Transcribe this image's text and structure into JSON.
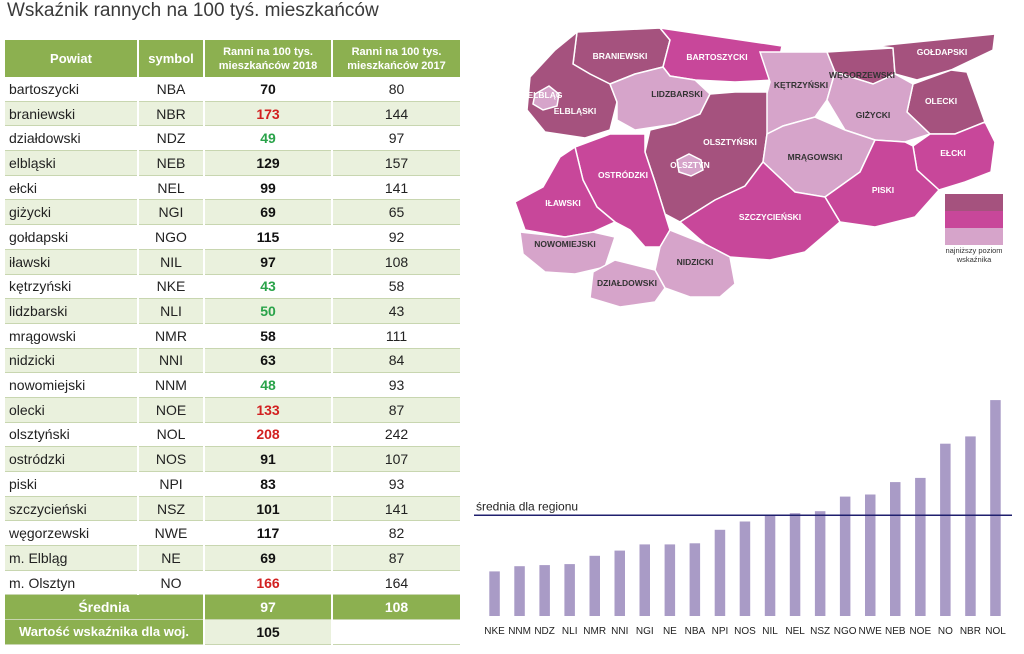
{
  "title": "Wskaźnik rannych na 100 tyś. mieszkańców",
  "table": {
    "headers": [
      "Powiat",
      "symbol",
      "Ranni na 100 tys. mieszkańców 2018",
      "Ranni na 100 tys. mieszkańców 2017"
    ],
    "rows": [
      {
        "powiat": "bartoszycki",
        "symbol": "NBA",
        "v2018": "70",
        "v2017": "80",
        "hl": ""
      },
      {
        "powiat": "braniewski",
        "symbol": "NBR",
        "v2018": "173",
        "v2017": "144",
        "hl": "hi"
      },
      {
        "powiat": "działdowski",
        "symbol": "NDZ",
        "v2018": "49",
        "v2017": "97",
        "hl": "lo"
      },
      {
        "powiat": "elbląski",
        "symbol": "NEB",
        "v2018": "129",
        "v2017": "157",
        "hl": ""
      },
      {
        "powiat": "ełcki",
        "symbol": "NEL",
        "v2018": "99",
        "v2017": "141",
        "hl": ""
      },
      {
        "powiat": "giżycki",
        "symbol": "NGI",
        "v2018": "69",
        "v2017": "65",
        "hl": ""
      },
      {
        "powiat": "gołdapski",
        "symbol": "NGO",
        "v2018": "115",
        "v2017": "92",
        "hl": ""
      },
      {
        "powiat": "iławski",
        "symbol": "NIL",
        "v2018": "97",
        "v2017": "108",
        "hl": ""
      },
      {
        "powiat": "kętrzyński",
        "symbol": "NKE",
        "v2018": "43",
        "v2017": "58",
        "hl": "lo"
      },
      {
        "powiat": "lidzbarski",
        "symbol": "NLI",
        "v2018": "50",
        "v2017": "43",
        "hl": "lo"
      },
      {
        "powiat": "mrągowski",
        "symbol": "NMR",
        "v2018": "58",
        "v2017": "111",
        "hl": ""
      },
      {
        "powiat": "nidzicki",
        "symbol": "NNI",
        "v2018": "63",
        "v2017": "84",
        "hl": ""
      },
      {
        "powiat": "nowomiejski",
        "symbol": "NNM",
        "v2018": "48",
        "v2017": "93",
        "hl": "lo"
      },
      {
        "powiat": "olecki",
        "symbol": "NOE",
        "v2018": "133",
        "v2017": "87",
        "hl": "hi"
      },
      {
        "powiat": "olsztyński",
        "symbol": "NOL",
        "v2018": "208",
        "v2017": "242",
        "hl": "hi"
      },
      {
        "powiat": "ostródzki",
        "symbol": "NOS",
        "v2018": "91",
        "v2017": "107",
        "hl": ""
      },
      {
        "powiat": "piski",
        "symbol": "NPI",
        "v2018": "83",
        "v2017": "93",
        "hl": ""
      },
      {
        "powiat": "szczycieński",
        "symbol": "NSZ",
        "v2018": "101",
        "v2017": "141",
        "hl": ""
      },
      {
        "powiat": "węgorzewski",
        "symbol": "NWE",
        "v2018": "117",
        "v2017": "82",
        "hl": ""
      },
      {
        "powiat": "m. Elbląg",
        "symbol": "NE",
        "v2018": "69",
        "v2017": "87",
        "hl": ""
      },
      {
        "powiat": "m. Olsztyn",
        "symbol": "NO",
        "v2018": "166",
        "v2017": "164",
        "hl": "hi"
      }
    ],
    "mean_label": "Średnia",
    "mean_2018": "97",
    "mean_2017": "108",
    "wojewodztwo_label": "Wartość wskaźnika dla woj.",
    "wojewodztwo_2018": "105"
  },
  "map": {
    "colors": {
      "high": "#a5527e",
      "mid": "#c8479a",
      "low": "#d6a4ca"
    },
    "labels": [
      "BRANIEWSKI",
      "BARTOSZYCKI",
      "WĘGORZEWSKI",
      "GOŁDAPSKI",
      "ELBLĄG",
      "ELBLĄSKI",
      "LIDZBARSKI",
      "KĘTRZYŃSKI",
      "OLECKI",
      "GIŻYCKI",
      "OLSZTYŃSKI",
      "OLSZTYN",
      "MRĄGOWSKI",
      "EŁCKI",
      "OSTRÓDZKI",
      "IŁAWSKI",
      "PISKI",
      "SZCZYCIEŃSKI",
      "NOWOMIEJSKI",
      "NIDZICKI",
      "DZIAŁDOWSKI"
    ],
    "legend_caption": "najniższy poziom wskaźnika"
  },
  "chart_data": {
    "type": "bar",
    "categories": [
      "NKE",
      "NNM",
      "NDZ",
      "NLI",
      "NMR",
      "NNI",
      "NGI",
      "NE",
      "NBA",
      "NPI",
      "NOS",
      "NIL",
      "NEL",
      "NSZ",
      "NGO",
      "NWE",
      "NEB",
      "NOE",
      "NO",
      "NBR",
      "NOL"
    ],
    "values": [
      43,
      48,
      49,
      50,
      58,
      63,
      69,
      69,
      70,
      83,
      91,
      97,
      99,
      101,
      115,
      117,
      129,
      133,
      166,
      173,
      208
    ],
    "bar_color": "#a99bc6",
    "reference_line": {
      "label": "średnia dla regionu",
      "value": 97,
      "color": "#1f1f6e"
    },
    "ylim": [
      0,
      210
    ]
  }
}
